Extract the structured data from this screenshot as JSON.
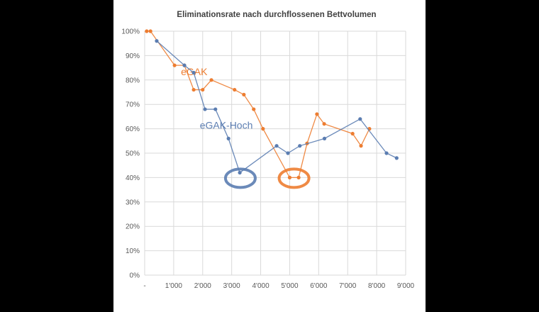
{
  "chart_data": {
    "type": "line",
    "title": "Eliminationsrate nach durchflossenen Bettvolumen",
    "xlabel": "",
    "ylabel": "",
    "xlim": [
      0,
      9000
    ],
    "ylim": [
      0,
      100
    ],
    "grid": true,
    "x_ticks": [
      {
        "value": 0,
        "label": "-"
      },
      {
        "value": 1000,
        "label": "1'000"
      },
      {
        "value": 2000,
        "label": "2'000"
      },
      {
        "value": 3000,
        "label": "3'000"
      },
      {
        "value": 4000,
        "label": "4'000"
      },
      {
        "value": 5000,
        "label": "5'000"
      },
      {
        "value": 6000,
        "label": "6'000"
      },
      {
        "value": 7000,
        "label": "7'000"
      },
      {
        "value": 8000,
        "label": "8'000"
      },
      {
        "value": 9000,
        "label": "9'000"
      }
    ],
    "y_ticks": [
      {
        "value": 0,
        "label": "0%"
      },
      {
        "value": 10,
        "label": "10%"
      },
      {
        "value": 20,
        "label": "20%"
      },
      {
        "value": 30,
        "label": "30%"
      },
      {
        "value": 40,
        "label": "40%"
      },
      {
        "value": 50,
        "label": "50%"
      },
      {
        "value": 60,
        "label": "60%"
      },
      {
        "value": 70,
        "label": "70%"
      },
      {
        "value": 80,
        "label": "80%"
      },
      {
        "value": 90,
        "label": "90%"
      },
      {
        "value": 100,
        "label": "100%"
      }
    ],
    "series": [
      {
        "name": "eGAK",
        "color": "#ED7D31",
        "label_at": [
          1250,
          82
        ],
        "x": [
          70,
          200,
          1030,
          1370,
          1690,
          2000,
          2300,
          3100,
          3420,
          3760,
          4080,
          5000,
          5310,
          5600,
          5940,
          6190,
          7170,
          7460,
          7750
        ],
        "y": [
          100,
          100,
          86,
          86,
          76,
          76,
          80,
          76,
          74,
          68,
          60,
          40,
          40,
          54,
          66,
          62,
          58,
          53,
          60
        ],
        "highlight": {
          "x": 5150,
          "y": 40
        }
      },
      {
        "name": "eGAK-Hoch",
        "color": "#5B7DB1",
        "label_at": [
          1900,
          60
        ],
        "x": [
          415,
          1370,
          1690,
          2080,
          2440,
          2890,
          3280,
          4550,
          4940,
          5350,
          6200,
          7430,
          8340,
          8690
        ],
        "y": [
          96,
          86,
          83,
          68,
          68,
          56,
          42,
          53,
          50,
          53,
          56,
          64,
          50,
          48
        ],
        "highlight": {
          "x": 3300,
          "y": 40
        }
      }
    ]
  }
}
